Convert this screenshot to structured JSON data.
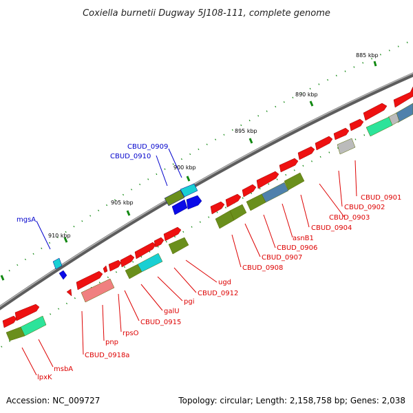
{
  "title": "Coxiella burnetii Dugway 5J108-111, complete genome",
  "footer": {
    "accession": "Accession: NC_009727",
    "stats": "Topology: circular; Length: 2,158,758 bp; Genes: 2,038"
  },
  "colors": {
    "label_red": "#dd0000",
    "label_blue": "#0000cc",
    "backbone": "#777777",
    "tick": "#118811"
  },
  "scale": {
    "ticks": [
      {
        "label": "885 kbp"
      },
      {
        "label": "890 kbp"
      },
      {
        "label": "895 kbp"
      },
      {
        "label": "900 kbp"
      },
      {
        "label": "905 kbp"
      },
      {
        "label": "910 kbp"
      }
    ]
  },
  "labels": {
    "blue": [
      {
        "text": "CBUD_0909"
      },
      {
        "text": "CBUD_0910"
      },
      {
        "text": "mgsA"
      }
    ],
    "red": [
      {
        "text": "CBUD_0901"
      },
      {
        "text": "CBUD_0902"
      },
      {
        "text": "CBUD_0903"
      },
      {
        "text": "CBUD_0904"
      },
      {
        "text": "asnB1"
      },
      {
        "text": "CBUD_0906"
      },
      {
        "text": "CBUD_0907"
      },
      {
        "text": "CBUD_0908"
      },
      {
        "text": "ugd"
      },
      {
        "text": "CBUD_0912"
      },
      {
        "text": "pgi"
      },
      {
        "text": "galU"
      },
      {
        "text": "CBUD_0915"
      },
      {
        "text": "rpsO"
      },
      {
        "text": "pnp"
      },
      {
        "text": "CBUD_0918a"
      },
      {
        "text": "msbA"
      },
      {
        "text": "lpxK"
      }
    ]
  }
}
